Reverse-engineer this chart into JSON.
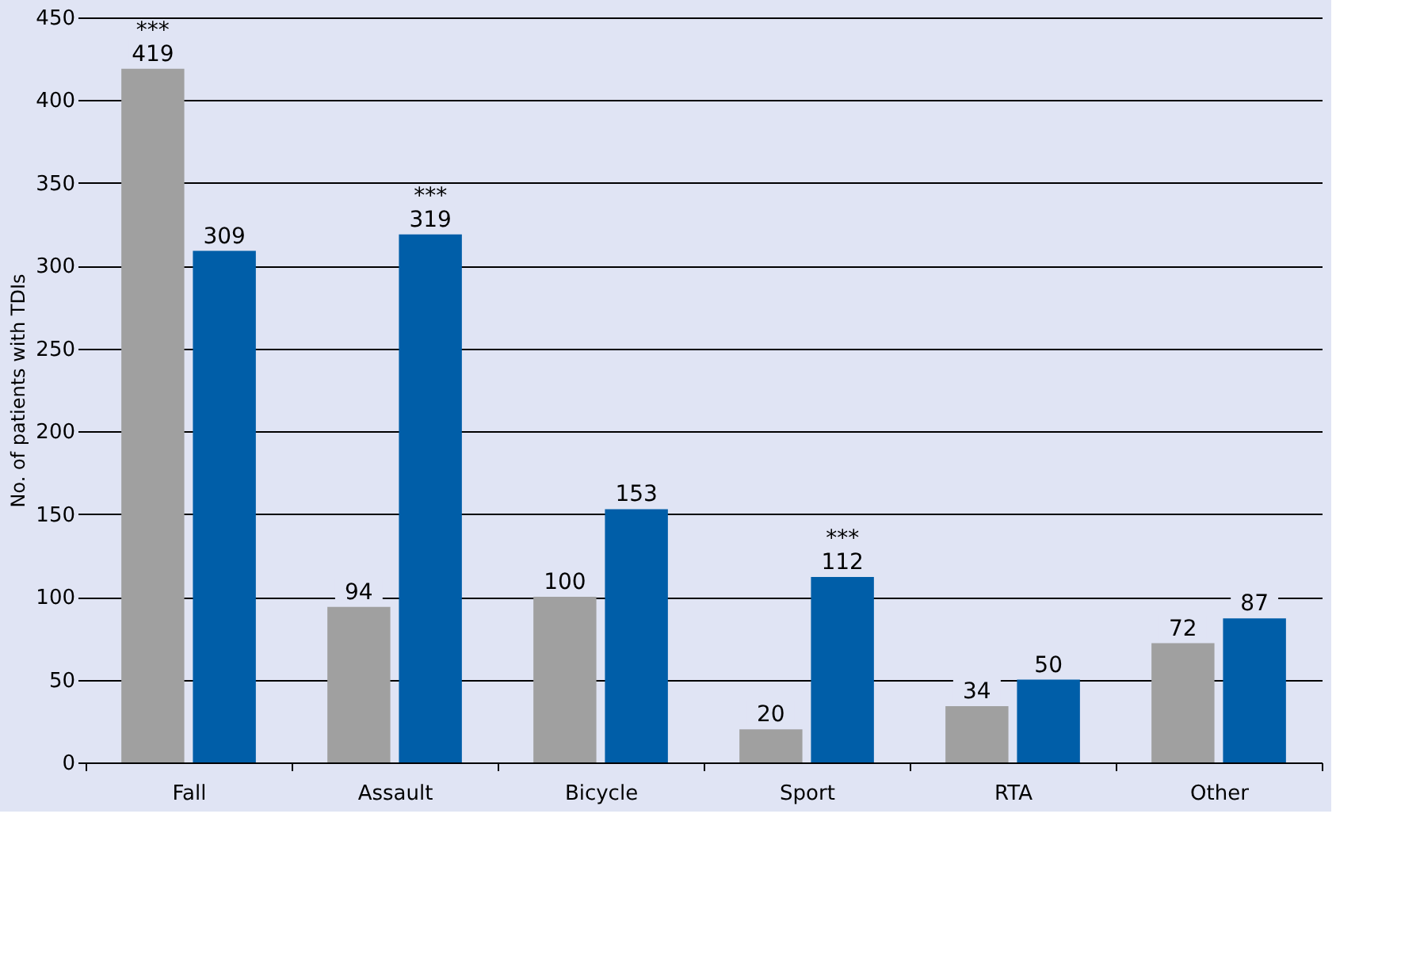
{
  "chart_data": {
    "type": "bar",
    "ylabel": "No. of patients with TDIs",
    "categories": [
      "Fall",
      "Assault",
      "Bicycle",
      "Sport",
      "RTA",
      "Other"
    ],
    "series": [
      {
        "color": "#a0a0a0",
        "values": [
          419,
          94,
          100,
          20,
          34,
          72
        ]
      },
      {
        "color": "#005ea8",
        "values": [
          309,
          319,
          153,
          112,
          50,
          87
        ]
      }
    ],
    "ylim": [
      0,
      450
    ],
    "yticks": [
      0,
      50,
      100,
      150,
      200,
      250,
      300,
      350,
      400,
      450
    ],
    "grid": "y",
    "data_labels": true,
    "annotations": [
      {
        "text": "***",
        "x": "Fall",
        "y": 419
      },
      {
        "text": "***",
        "x": "Assault",
        "y": 319
      },
      {
        "text": "***",
        "x": "Sport",
        "y": 112
      }
    ]
  }
}
